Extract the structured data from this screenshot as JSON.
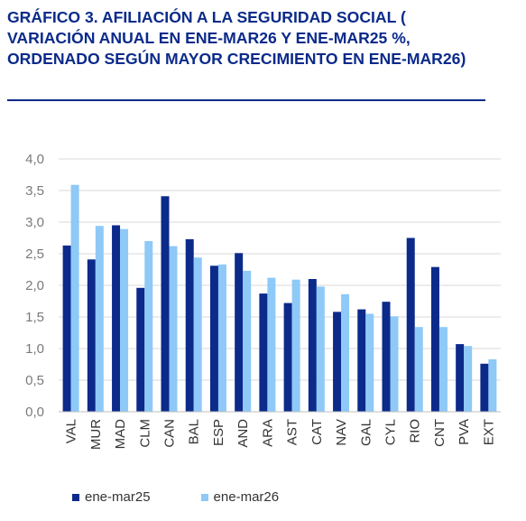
{
  "title": "GRÁFICO 3. AFILIACIÓN A LA SEGURIDAD SOCIAL ( VARIACIÓN ANUAL EN ENE-MAR26 Y ENE-MAR25 %, ORDENADO SEGÚN MAYOR CRECIMIENTO EN ENE-MAR26)",
  "colors": {
    "series1": "#0b2a8a",
    "series2": "#8ec9f7",
    "title": "#0b2a8a"
  },
  "chart_data": {
    "type": "bar",
    "categories": [
      "VAL",
      "MUR",
      "MAD",
      "CLM",
      "CAN",
      "BAL",
      "ESP",
      "AND",
      "ARA",
      "AST",
      "CAT",
      "NAV",
      "GAL",
      "CYL",
      "RIO",
      "CNT",
      "PVA",
      "EXT"
    ],
    "series": [
      {
        "name": "ene-mar25",
        "values": [
          2.63,
          2.41,
          2.95,
          1.96,
          3.41,
          2.73,
          2.31,
          2.51,
          1.87,
          1.72,
          2.1,
          1.58,
          1.62,
          1.74,
          2.75,
          2.29,
          1.07,
          0.76
        ]
      },
      {
        "name": "ene-mar26",
        "values": [
          3.59,
          2.94,
          2.89,
          2.7,
          2.62,
          2.44,
          2.33,
          2.23,
          2.12,
          2.09,
          1.98,
          1.86,
          1.55,
          1.51,
          1.34,
          1.34,
          1.04,
          0.83
        ]
      }
    ],
    "ylim": [
      0,
      4.0
    ],
    "yticks": [
      "0,0",
      "0,5",
      "1,0",
      "1,5",
      "2,0",
      "2,5",
      "3,0",
      "3,5",
      "4,0"
    ],
    "grid": true,
    "legend": "bottom"
  }
}
